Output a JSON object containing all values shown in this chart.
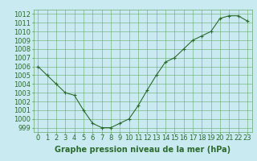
{
  "x": [
    0,
    1,
    2,
    3,
    4,
    5,
    6,
    7,
    8,
    9,
    10,
    11,
    12,
    13,
    14,
    15,
    16,
    17,
    18,
    19,
    20,
    21,
    22,
    23
  ],
  "y": [
    1006.0,
    1005.0,
    1004.0,
    1003.0,
    1002.7,
    1001.0,
    999.5,
    999.0,
    999.0,
    999.5,
    1000.0,
    1001.5,
    1003.3,
    1005.0,
    1006.5,
    1007.0,
    1008.0,
    1009.0,
    1009.5,
    1010.0,
    1011.5,
    1011.8,
    1011.8,
    1011.2
  ],
  "line_color": "#2d6b2d",
  "marker": "+",
  "marker_size": 3,
  "bg_color": "#c8eaf0",
  "grid_color": "#6aaa6a",
  "xlabel": "Graphe pression niveau de la mer (hPa)",
  "xlabel_fontsize": 7,
  "tick_fontsize": 6,
  "ylim": [
    998.5,
    1012.5
  ],
  "yticks": [
    999,
    1000,
    1001,
    1002,
    1003,
    1004,
    1005,
    1006,
    1007,
    1008,
    1009,
    1010,
    1011,
    1012
  ],
  "xticks": [
    0,
    1,
    2,
    3,
    4,
    5,
    6,
    7,
    8,
    9,
    10,
    11,
    12,
    13,
    14,
    15,
    16,
    17,
    18,
    19,
    20,
    21,
    22,
    23
  ],
  "xlim": [
    -0.5,
    23.5
  ]
}
